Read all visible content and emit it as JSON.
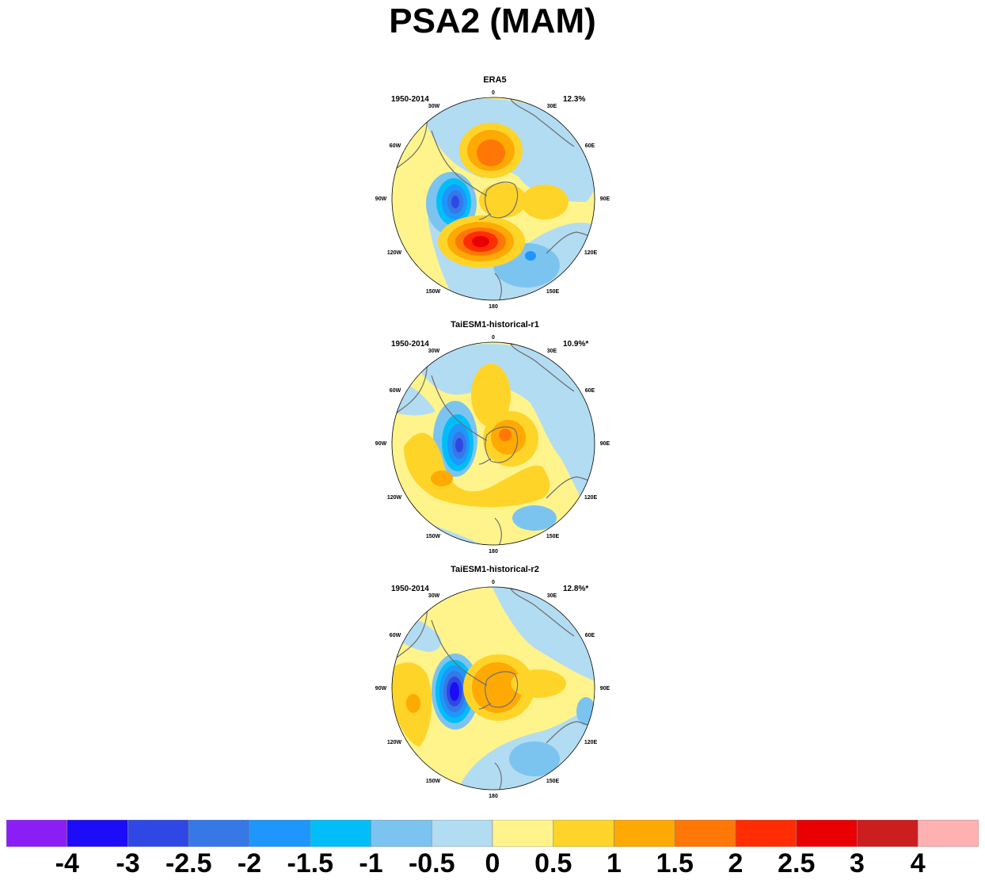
{
  "figure": {
    "title": "PSA2 (MAM)"
  },
  "chart_data": [
    {
      "type": "heatmap",
      "title": "ERA5",
      "period": "1950-2014",
      "variance_explained": "12.3%",
      "projection": "south-polar stereographic",
      "longitude_labels": [
        "0",
        "30E",
        "60E",
        "90E",
        "120E",
        "150E",
        "180",
        "150W",
        "120W",
        "90W",
        "60W",
        "30W"
      ],
      "anomaly_centers": [
        {
          "sign": "positive",
          "max": "2.5",
          "location": "South Pacific near 120W"
        },
        {
          "sign": "negative",
          "max": "-2",
          "location": "Amundsen/Bellingshausen Sea near 80W"
        },
        {
          "sign": "positive",
          "max": "1.5",
          "location": "South Atlantic near 20W"
        },
        {
          "sign": "positive",
          "max": "1",
          "location": "Indian Ocean sector near 90E"
        }
      ]
    },
    {
      "type": "heatmap",
      "title": "TaiESM1-historical-r1",
      "period": "1950-2014",
      "variance_explained": "10.9%*",
      "projection": "south-polar stereographic",
      "longitude_labels": [
        "0",
        "30E",
        "60E",
        "90E",
        "120E",
        "150E",
        "180",
        "150W",
        "120W",
        "90W",
        "60W",
        "30W"
      ],
      "anomaly_centers": [
        {
          "sign": "negative",
          "max": "-2",
          "location": "Bellingshausen Sea near 80W"
        },
        {
          "sign": "positive",
          "max": "1.5",
          "location": "East Antarctica"
        },
        {
          "sign": "positive",
          "max": "1",
          "location": "South Pacific near 120W"
        }
      ]
    },
    {
      "type": "heatmap",
      "title": "TaiESM1-historical-r2",
      "period": "1950-2014",
      "variance_explained": "12.8%*",
      "projection": "south-polar stereographic",
      "longitude_labels": [
        "0",
        "30E",
        "60E",
        "90E",
        "120E",
        "150E",
        "180",
        "150W",
        "120W",
        "90W",
        "60W",
        "30W"
      ],
      "anomaly_centers": [
        {
          "sign": "negative",
          "max": "-3",
          "location": "Bellingshausen Sea near 85W"
        },
        {
          "sign": "positive",
          "max": "1.5",
          "location": "East Antarctica"
        },
        {
          "sign": "positive",
          "max": "1",
          "location": "South Pacific near 110W"
        }
      ]
    }
  ],
  "colorbar": {
    "colors": [
      "#8b1ef5",
      "#1d0cf7",
      "#2f48e5",
      "#3578e6",
      "#1e96fb",
      "#01bef9",
      "#7cc4f0",
      "#b2dcf2",
      "#fff48c",
      "#ffd429",
      "#ffa904",
      "#ff7807",
      "#ff2d01",
      "#e90002",
      "#cc1d1f",
      "#ffb1b1"
    ],
    "labels": [
      "-4",
      "-3",
      "-2.5",
      "-2",
      "-1.5",
      "-1",
      "-0.5",
      "0",
      "0.5",
      "1",
      "1.5",
      "2",
      "2.5",
      "3",
      "4"
    ]
  }
}
